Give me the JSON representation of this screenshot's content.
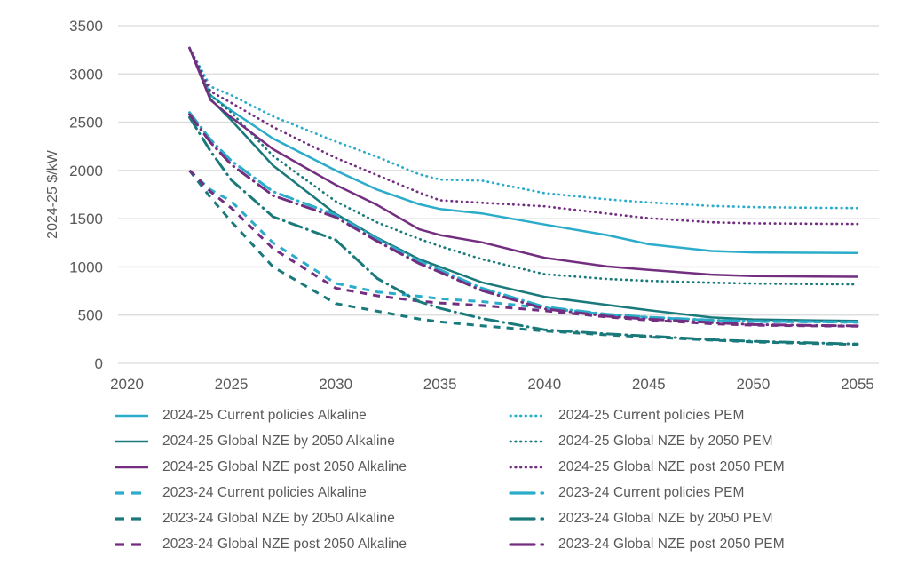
{
  "palette": {
    "cyan": "#2BACCA",
    "teal": "#1A7A7B",
    "purple": "#732E80",
    "grid": "#D9D9D9",
    "text": "#595959"
  },
  "chart_data": {
    "type": "line",
    "title": "",
    "xlabel": "",
    "ylabel": "2024-25 $/kW",
    "xlim": [
      2020,
      2055
    ],
    "ylim": [
      0,
      3500
    ],
    "xticks": [
      "2020",
      "2025",
      "2030",
      "2035",
      "2040",
      "2045",
      "2050",
      "2055"
    ],
    "xtick_values": [
      2020,
      2025,
      2030,
      2035,
      2040,
      2045,
      2050,
      2055
    ],
    "yticks": [
      "0",
      "500",
      "1000",
      "1500",
      "2000",
      "2500",
      "3000",
      "3500"
    ],
    "ytick_values": [
      0,
      500,
      1000,
      1500,
      2000,
      2500,
      3000,
      3500
    ],
    "grid": "horizontal-only",
    "legend_position": "bottom-two-columns",
    "x": [
      2023,
      2024,
      2025,
      2027,
      2030,
      2032,
      2034,
      2035,
      2037,
      2040,
      2043,
      2045,
      2048,
      2050,
      2053,
      2055
    ],
    "series": [
      {
        "id": "cp_alk_2425",
        "label": "2024-25 Current policies Alkaline",
        "color": "cyan",
        "style": "solid",
        "legend_col": "left",
        "legend_row": 0,
        "values": [
          3270,
          2780,
          2620,
          2330,
          2000,
          1800,
          1650,
          1600,
          1555,
          1440,
          1330,
          1235,
          1165,
          1150,
          1147,
          1145
        ]
      },
      {
        "id": "nze_alk_2425",
        "label": "2024-25 Global NZE by 2050 Alkaline",
        "color": "teal",
        "style": "solid",
        "legend_col": "left",
        "legend_row": 1,
        "values": [
          3270,
          2740,
          2520,
          2050,
          1550,
          1300,
          1080,
          1000,
          840,
          690,
          605,
          550,
          475,
          455,
          445,
          440
        ]
      },
      {
        "id": "cp_pem_2425",
        "label": "2024-25 Current policies PEM",
        "color": "cyan",
        "style": "dotted",
        "legend_col": "right",
        "legend_row": 0,
        "values": [
          3270,
          2870,
          2780,
          2560,
          2300,
          2140,
          1960,
          1905,
          1895,
          1765,
          1700,
          1668,
          1632,
          1620,
          1613,
          1610
        ]
      },
      {
        "id": "nze_pem_2425",
        "label": "2024-25 Global NZE by 2050 PEM",
        "color": "teal",
        "style": "dotted",
        "legend_col": "right",
        "legend_row": 1,
        "values": [
          3270,
          2780,
          2600,
          2150,
          1680,
          1460,
          1290,
          1215,
          1080,
          925,
          875,
          856,
          836,
          828,
          822,
          820
        ]
      },
      {
        "id": "post_pem_2425",
        "label": "2024-25 Global NZE post 2050 PEM",
        "color": "purple",
        "style": "dotted",
        "legend_col": "right",
        "legend_row": 2,
        "values": [
          3270,
          2820,
          2700,
          2450,
          2130,
          1950,
          1770,
          1690,
          1665,
          1628,
          1553,
          1505,
          1463,
          1452,
          1447,
          1445
        ]
      },
      {
        "id": "post_alk_2425",
        "label": "2024-25 Global NZE post 2050 Alkaline",
        "color": "purple",
        "style": "solid",
        "legend_col": "left",
        "legend_row": 2,
        "values": [
          3270,
          2730,
          2550,
          2220,
          1850,
          1640,
          1390,
          1330,
          1255,
          1095,
          1005,
          970,
          920,
          905,
          900,
          898
        ]
      },
      {
        "id": "cp_alk_2324",
        "label": "2023-24 Current policies Alkaline",
        "color": "cyan",
        "style": "dash",
        "legend_col": "left",
        "legend_row": 3,
        "values": [
          2000,
          1800,
          1680,
          1250,
          830,
          740,
          695,
          670,
          640,
          575,
          505,
          475,
          445,
          432,
          428,
          425
        ]
      },
      {
        "id": "nze_alk_2324",
        "label": "2023-24 Global NZE by 2050 Alkaline",
        "color": "teal",
        "style": "dash",
        "legend_col": "left",
        "legend_row": 4,
        "values": [
          2000,
          1720,
          1470,
          1000,
          620,
          540,
          460,
          430,
          390,
          335,
          295,
          273,
          240,
          222,
          205,
          195
        ]
      },
      {
        "id": "post_alk_2324",
        "label": "2023-24 Global NZE post 2050 Alkaline",
        "color": "purple",
        "style": "dash",
        "legend_col": "left",
        "legend_row": 5,
        "values": [
          2000,
          1780,
          1610,
          1190,
          780,
          700,
          645,
          625,
          600,
          545,
          480,
          448,
          410,
          395,
          388,
          385
        ]
      },
      {
        "id": "cp_pem_2324",
        "label": "2023-24 Current policies PEM",
        "color": "cyan",
        "style": "dashdot",
        "legend_col": "right",
        "legend_row": 3,
        "values": [
          2600,
          2320,
          2100,
          1780,
          1540,
          1290,
          1060,
          970,
          780,
          585,
          508,
          478,
          448,
          436,
          431,
          428
        ]
      },
      {
        "id": "nze_pem_2324",
        "label": "2023-24 Global NZE by 2050 PEM",
        "color": "teal",
        "style": "dashdot",
        "legend_col": "right",
        "legend_row": 4,
        "values": [
          2550,
          2200,
          1900,
          1520,
          1280,
          880,
          640,
          570,
          465,
          348,
          305,
          283,
          245,
          228,
          212,
          200
        ]
      },
      {
        "id": "post_pem_2324",
        "label": "2023-24 Global NZE post 2050 PEM",
        "color": "purple",
        "style": "dashdot",
        "legend_col": "right",
        "legend_row": 5,
        "values": [
          2580,
          2290,
          2060,
          1740,
          1515,
          1265,
          1035,
          945,
          755,
          565,
          488,
          458,
          422,
          402,
          392,
          388
        ]
      }
    ]
  }
}
